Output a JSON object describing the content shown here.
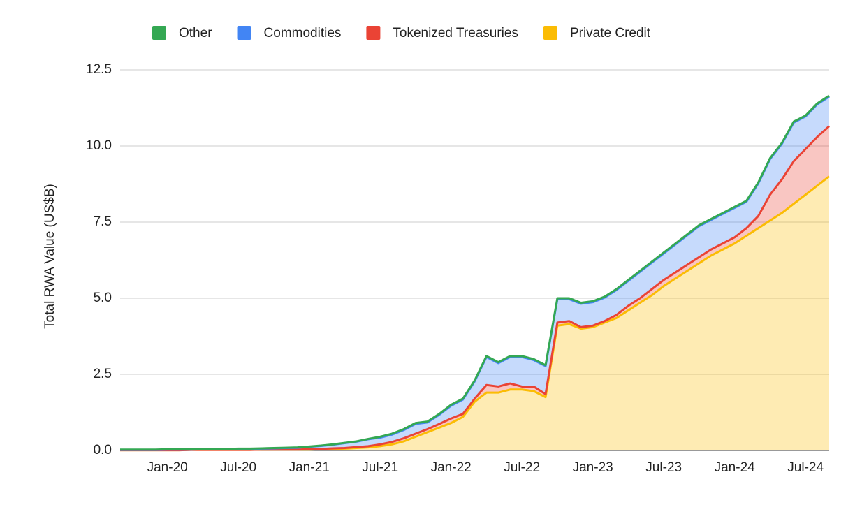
{
  "chart_data": {
    "type": "stacked_area",
    "categories": [
      null,
      null,
      null,
      null,
      "Jan-20",
      null,
      null,
      null,
      null,
      null,
      "Jul-20",
      null,
      null,
      null,
      null,
      null,
      "Jan-21",
      null,
      null,
      null,
      null,
      null,
      "Jul-21",
      null,
      null,
      null,
      null,
      null,
      "Jan-22",
      null,
      null,
      null,
      null,
      null,
      "Jul-22",
      null,
      null,
      null,
      null,
      null,
      "Jan-23",
      null,
      null,
      null,
      null,
      null,
      "Jul-23",
      null,
      null,
      null,
      null,
      null,
      "Jan-24",
      null,
      null,
      null,
      null,
      null,
      "Jul-24",
      null,
      null
    ],
    "series": [
      {
        "name": "Other",
        "color": "#34a853",
        "values": [
          0.01,
          0.01,
          0.01,
          0.01,
          0.01,
          0.01,
          0.01,
          0.01,
          0.01,
          0.01,
          0.01,
          0.01,
          0.01,
          0.01,
          0.01,
          0.01,
          0.01,
          0.01,
          0.01,
          0.01,
          0.01,
          0.01,
          0.03,
          0.03,
          0.03,
          0.03,
          0.03,
          0.03,
          0.03,
          0.03,
          0.03,
          0.03,
          0.03,
          0.03,
          0.03,
          0.03,
          0.03,
          0.03,
          0.03,
          0.03,
          0.03,
          0.03,
          0.03,
          0.03,
          0.03,
          0.03,
          0.03,
          0.03,
          0.03,
          0.03,
          0.03,
          0.03,
          0.03,
          0.03,
          0.03,
          0.03,
          0.03,
          0.03,
          0.03,
          0.03,
          0.03
        ]
      },
      {
        "name": "Commodities",
        "color": "#4285f4",
        "values": [
          0.01,
          0.01,
          0.01,
          0.01,
          0.02,
          0.02,
          0.01,
          0.02,
          0.02,
          0.02,
          0.03,
          0.03,
          0.03,
          0.04,
          0.05,
          0.06,
          0.08,
          0.1,
          0.12,
          0.16,
          0.18,
          0.23,
          0.22,
          0.24,
          0.27,
          0.32,
          0.22,
          0.3,
          0.42,
          0.47,
          0.57,
          0.92,
          0.77,
          0.87,
          0.97,
          0.87,
          0.92,
          0.77,
          0.72,
          0.77,
          0.77,
          0.77,
          0.82,
          0.82,
          0.87,
          0.87,
          0.87,
          0.92,
          0.97,
          1.02,
          0.97,
          0.97,
          0.97,
          0.87,
          1.07,
          1.17,
          1.17,
          1.27,
          1.07,
          1.07,
          0.97
        ]
      },
      {
        "name": "Tokenized Treasuries",
        "color": "#ea4335",
        "values": [
          0,
          0,
          0,
          0,
          0,
          0,
          0,
          0,
          0,
          0,
          0,
          0,
          0,
          0,
          0,
          0,
          0.01,
          0.01,
          0.02,
          0.02,
          0.03,
          0.04,
          0.06,
          0.08,
          0.1,
          0.1,
          0.1,
          0.12,
          0.15,
          0.1,
          0.1,
          0.25,
          0.2,
          0.2,
          0.1,
          0.15,
          0.1,
          0.1,
          0.1,
          0.05,
          0.05,
          0.05,
          0.1,
          0.15,
          0.15,
          0.2,
          0.2,
          0.2,
          0.2,
          0.2,
          0.2,
          0.2,
          0.2,
          0.25,
          0.4,
          0.85,
          1.1,
          1.4,
          1.5,
          1.6,
          1.65
        ]
      },
      {
        "name": "Private Credit",
        "color": "#fbbc04",
        "values": [
          0.01,
          0.01,
          0.01,
          0.01,
          0.01,
          0.01,
          0.02,
          0.02,
          0.02,
          0.02,
          0.02,
          0.02,
          0.03,
          0.03,
          0.03,
          0.03,
          0.03,
          0.04,
          0.05,
          0.06,
          0.08,
          0.1,
          0.14,
          0.2,
          0.3,
          0.45,
          0.6,
          0.75,
          0.9,
          1.1,
          1.6,
          1.9,
          1.9,
          2.0,
          2.0,
          1.95,
          1.75,
          4.1,
          4.15,
          4.0,
          4.05,
          4.2,
          4.35,
          4.6,
          4.85,
          5.1,
          5.4,
          5.65,
          5.9,
          6.15,
          6.4,
          6.6,
          6.8,
          7.05,
          7.3,
          7.55,
          7.8,
          8.1,
          8.4,
          8.7,
          9.0
        ]
      }
    ],
    "y_label": "Total RWA Value (US$B)",
    "ylim": [
      0,
      12.5
    ],
    "yticks": [
      {
        "value": 0,
        "label": "0.0"
      },
      2.5,
      {
        "value": 5,
        "label": "5.0"
      },
      7.5,
      {
        "value": 10,
        "label": "10.0"
      },
      12.5
    ],
    "grid": true,
    "legend": "top"
  }
}
